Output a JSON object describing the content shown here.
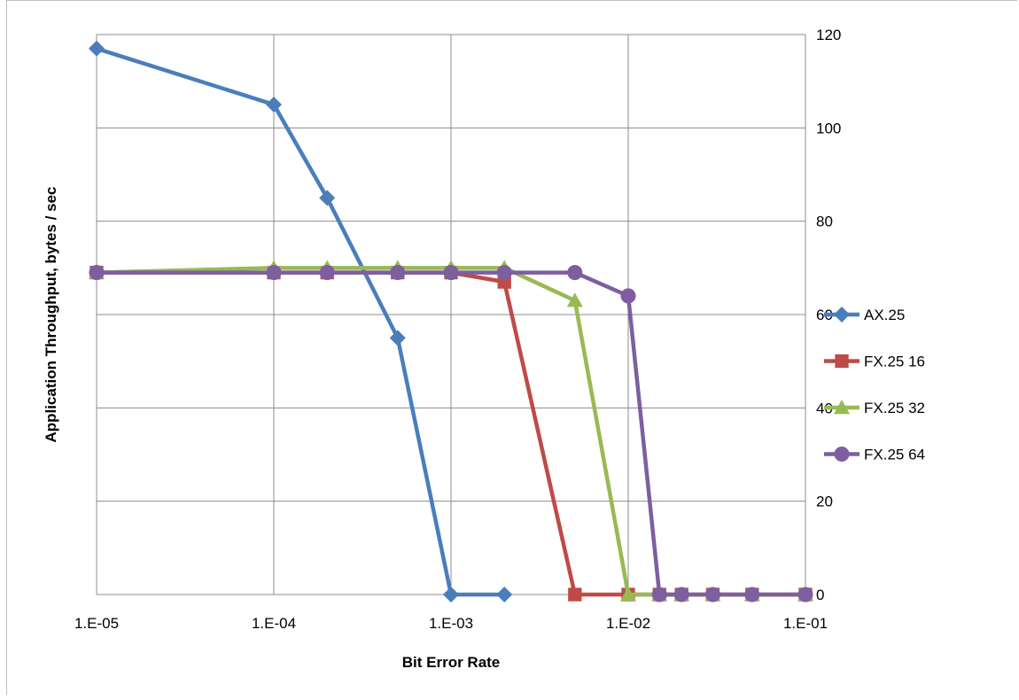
{
  "chart_data": {
    "type": "line",
    "title": "",
    "xlabel": "Bit Error Rate",
    "ylabel": "Application Throughput, bytes / sec",
    "x_scale": "log",
    "xlim": [
      1e-05,
      0.1
    ],
    "ylim": [
      0,
      120
    ],
    "x_tick_labels": [
      "1.E-05",
      "1.E-04",
      "1.E-03",
      "1.E-02",
      "1.E-01"
    ],
    "y_tick_labels": [
      "0",
      "20",
      "40",
      "60",
      "80",
      "100",
      "120"
    ],
    "y_ticks": [
      0,
      20,
      40,
      60,
      80,
      100,
      120
    ],
    "y_axis_side": "right",
    "grid": true,
    "legend_position": "right",
    "series": [
      {
        "name": "AX.25",
        "color": "#4a7ebb",
        "marker": "diamond",
        "x": [
          1e-05,
          0.0001,
          0.0002,
          0.0005,
          0.001,
          0.002
        ],
        "y": [
          117,
          105,
          85,
          55,
          0,
          0
        ]
      },
      {
        "name": "FX.25 16",
        "color": "#be4b48",
        "marker": "square",
        "x": [
          1e-05,
          0.0001,
          0.0002,
          0.0005,
          0.001,
          0.002,
          0.005,
          0.01,
          0.015,
          0.02,
          0.03,
          0.05,
          0.1
        ],
        "y": [
          69,
          69,
          69,
          69,
          69,
          67,
          0,
          0,
          0,
          0,
          0,
          0,
          0
        ]
      },
      {
        "name": "FX.25 32",
        "color": "#98b954",
        "marker": "triangle",
        "x": [
          1e-05,
          0.0001,
          0.0002,
          0.0005,
          0.001,
          0.002,
          0.005,
          0.01,
          0.015,
          0.02,
          0.03,
          0.05,
          0.1
        ],
        "y": [
          69,
          70,
          70,
          70,
          70,
          70,
          63,
          0,
          0,
          0,
          0,
          0,
          0
        ]
      },
      {
        "name": "FX.25 64",
        "color": "#7d5fa0",
        "marker": "circle",
        "x": [
          1e-05,
          0.0001,
          0.0002,
          0.0005,
          0.001,
          0.002,
          0.005,
          0.01,
          0.015,
          0.02,
          0.03,
          0.05,
          0.1
        ],
        "y": [
          69,
          69,
          69,
          69,
          69,
          69,
          69,
          64,
          0,
          0,
          0,
          0,
          0
        ]
      }
    ]
  }
}
